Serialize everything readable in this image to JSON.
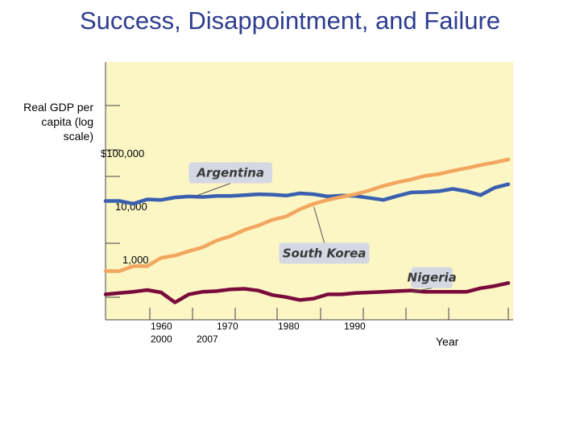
{
  "slide": {
    "title": "Success, Disappointment, and Failure"
  },
  "colors": {
    "plot_background": "#fbf6c4",
    "argentina": "#3a5fb0",
    "south_korea": "#f2a65f",
    "nigeria": "#7a0a3c",
    "label_box": "#d4d8e2",
    "title": "#2e3d8f"
  },
  "chart_data": {
    "type": "line",
    "title": "",
    "ylabel": "Real GDP per\ncapita (log\nscale)",
    "xlabel": "Year",
    "y_scale": "log",
    "ylim": [
      300,
      300000
    ],
    "xlim": [
      1950,
      2008
    ],
    "grid": false,
    "y_tick_labels": [
      "$100,000",
      "10,000",
      "1,000"
    ],
    "y_tick_values": [
      100000,
      10000,
      1000
    ],
    "x_tick_labels": [
      {
        "line1": "1960",
        "line2": "2000"
      },
      {
        "line1": "1970",
        "line2": "2007"
      },
      {
        "line1": "1980",
        "line2": ""
      },
      {
        "line1": "1990",
        "line2": ""
      }
    ],
    "x": [
      1950,
      1952,
      1954,
      1956,
      1958,
      1960,
      1962,
      1964,
      1966,
      1968,
      1970,
      1972,
      1974,
      1976,
      1978,
      1980,
      1982,
      1984,
      1986,
      1988,
      1990,
      1992,
      1994,
      1996,
      1998,
      2000,
      2002,
      2004,
      2006,
      2008
    ],
    "series": [
      {
        "name": "Argentina",
        "color": "#3a5fb0",
        "values": [
          7000,
          7000,
          6500,
          7300,
          7200,
          7700,
          7900,
          7800,
          8000,
          8000,
          8200,
          8400,
          8300,
          8100,
          8600,
          8400,
          7900,
          8100,
          8000,
          7600,
          7200,
          8000,
          8800,
          8900,
          9100,
          9700,
          9100,
          8200,
          10000,
          11000
        ]
      },
      {
        "name": "South Korea",
        "color": "#f2a65f",
        "values": [
          1050,
          1050,
          1200,
          1200,
          1500,
          1600,
          1800,
          2000,
          2400,
          2700,
          3200,
          3600,
          4200,
          4600,
          5600,
          6500,
          7200,
          7800,
          8400,
          9300,
          10500,
          11600,
          12500,
          13800,
          14500,
          15800,
          17000,
          18500,
          19800,
          21500
        ]
      },
      {
        "name": "Nigeria",
        "color": "#7a0a3c",
        "values": [
          560,
          580,
          600,
          630,
          590,
          450,
          560,
          600,
          610,
          640,
          650,
          620,
          550,
          520,
          480,
          500,
          560,
          560,
          580,
          590,
          600,
          610,
          620,
          600,
          600,
          600,
          600,
          660,
          700,
          760
        ]
      }
    ],
    "annotations": [
      {
        "text": "Argentina",
        "series": "Argentina",
        "box": [
          1962,
          1974,
          15000
        ],
        "anchor": [
          1963,
          8000
        ]
      },
      {
        "text": "South Korea",
        "series": "South Korea",
        "box": [
          1975,
          1988,
          1700
        ],
        "anchor": [
          1980,
          6000
        ]
      },
      {
        "text": "Nigeria",
        "series": "Nigeria",
        "box": [
          1994,
          2000,
          880
        ],
        "anchor": [
          1994,
          600
        ]
      }
    ]
  }
}
